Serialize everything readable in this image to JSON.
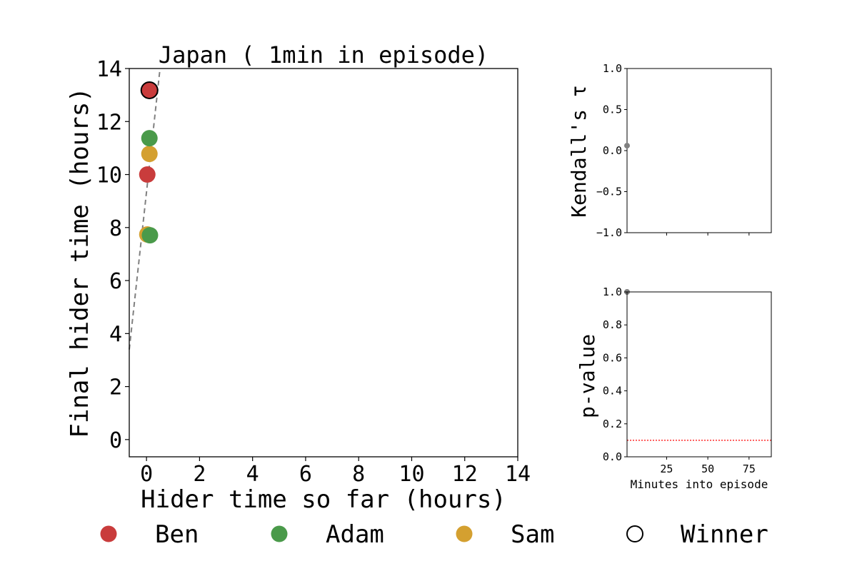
{
  "chart_data": [
    {
      "type": "scatter",
      "title": "Japan ( 1min in episode)",
      "xlabel": "Hider time so far (hours)",
      "ylabel": "Final hider time (hours)",
      "xlim": [
        -0.65,
        14
      ],
      "ylim": [
        -0.65,
        14
      ],
      "xticks": [
        "0",
        "2",
        "4",
        "6",
        "8",
        "10",
        "12",
        "14"
      ],
      "yticks": [
        "0",
        "2",
        "4",
        "6",
        "8",
        "10",
        "12",
        "14"
      ],
      "grid": false,
      "points": [
        {
          "name": "Ben",
          "x": 0.11,
          "y": 13.18,
          "color": "#c93c3c",
          "winner": true
        },
        {
          "name": "Adam",
          "x": 0.11,
          "y": 11.37,
          "color": "#4a9a4a",
          "winner": false
        },
        {
          "name": "Sam",
          "x": 0.11,
          "y": 10.78,
          "color": "#d4a030",
          "winner": false
        },
        {
          "name": "Ben",
          "x": 0.03,
          "y": 10.0,
          "color": "#c93c3c",
          "winner": false
        },
        {
          "name": "Adam",
          "x": 0.13,
          "y": 7.71,
          "color": "#4a9a4a",
          "winner": false
        },
        {
          "name": "Sam",
          "x": 0.03,
          "y": 7.74,
          "color": "#d4a030",
          "winner": false
        }
      ],
      "fit_line": {
        "style": "dashed",
        "color": "#808080",
        "x": [
          -0.65,
          0.51
        ],
        "y": [
          3.4,
          14.0
        ]
      }
    },
    {
      "type": "scatter",
      "title": "",
      "xlabel": "",
      "ylabel": "Kendall's τ",
      "xlim": [
        1,
        88.5
      ],
      "ylim": [
        -1.0,
        1.0
      ],
      "yticks": [
        "1.0",
        "0.5",
        "0.0",
        "−0.5",
        "−1.0"
      ],
      "xticks": [
        "25",
        "50",
        "75"
      ],
      "xticklabels_visible": false,
      "points": [
        {
          "x": 1,
          "y": 0.06,
          "color": "#808080"
        }
      ]
    },
    {
      "type": "line",
      "title": "",
      "xlabel": "Minutes into episode",
      "ylabel": "p-value",
      "xlim": [
        1,
        88.5
      ],
      "ylim": [
        0.0,
        1.0
      ],
      "yticks": [
        "1.0",
        "0.8",
        "0.6",
        "0.4",
        "0.2",
        "0.0"
      ],
      "xticks": [
        "25",
        "50",
        "75"
      ],
      "points": [
        {
          "x": 1,
          "y": 1.0,
          "color": "#808080"
        }
      ],
      "threshold_line": {
        "y": 0.1,
        "style": "dotted",
        "color": "#ff0000"
      }
    }
  ],
  "legend": {
    "position": "bottom",
    "items": [
      {
        "label": "Ben",
        "color": "#c93c3c",
        "style": "filled"
      },
      {
        "label": "Adam",
        "color": "#4a9a4a",
        "style": "filled"
      },
      {
        "label": "Sam",
        "color": "#d4a030",
        "style": "filled"
      },
      {
        "label": "Winner",
        "color": "#000000",
        "style": "hollow"
      }
    ]
  }
}
